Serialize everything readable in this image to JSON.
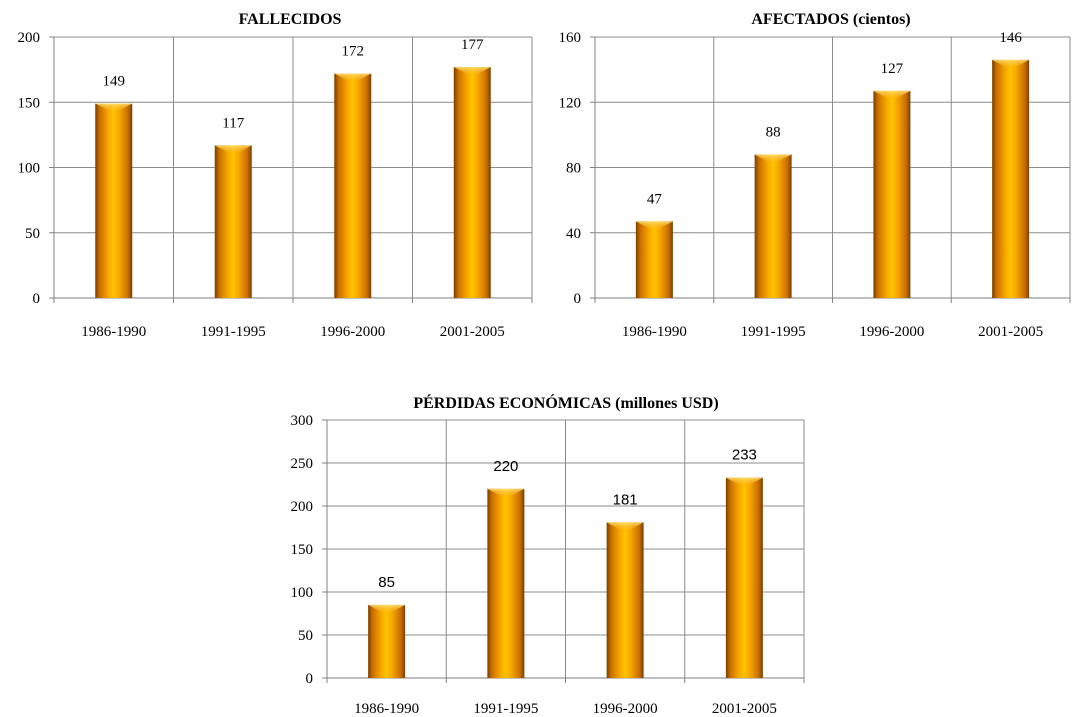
{
  "chart_data": [
    {
      "type": "bar",
      "title": "FALLECIDOS",
      "categories": [
        "1986-1990",
        "1991-1995",
        "1996-2000",
        "2001-2005"
      ],
      "values": [
        149,
        117,
        172,
        177
      ],
      "ylim": [
        0,
        200
      ],
      "yticks": [
        0,
        50,
        100,
        150,
        200
      ],
      "grid": true,
      "bar_color": "#F59E00"
    },
    {
      "type": "bar",
      "title": "AFECTADOS  (cientos)",
      "categories": [
        "1986-1990",
        "1991-1995",
        "1996-2000",
        "2001-2005"
      ],
      "values": [
        47,
        88,
        127,
        146
      ],
      "ylim": [
        0,
        160
      ],
      "yticks": [
        0,
        40,
        80,
        120,
        160
      ],
      "grid": true,
      "bar_color": "#F59E00"
    },
    {
      "type": "bar",
      "title": "PÉRDIDAS  ECONÓMICAS  (millones USD)",
      "categories": [
        "1986-1990",
        "1991-1995",
        "1996-2000",
        "2001-2005"
      ],
      "values": [
        85,
        220,
        181,
        233
      ],
      "ylim": [
        0,
        300
      ],
      "yticks": [
        0,
        50,
        100,
        150,
        200,
        250,
        300
      ],
      "grid": true,
      "bar_color": "#F59E00"
    }
  ]
}
